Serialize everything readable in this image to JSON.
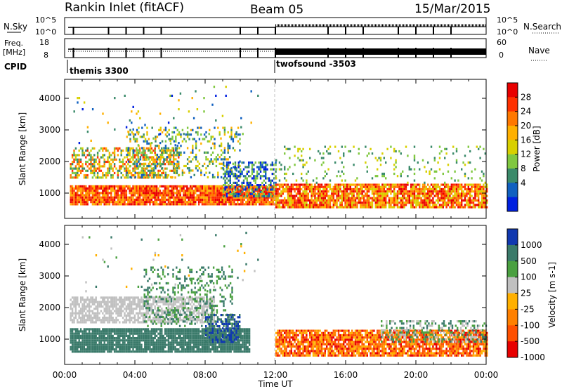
{
  "header": {
    "station": "Rankin Inlet (fitACF)",
    "beam": "Beam 05",
    "date": "15/Mar/2015"
  },
  "top_panels": {
    "nsky_label": "N.Sky",
    "nsky_ticks": [
      "10^5",
      "10^0"
    ],
    "nsearch_label": "N.Search",
    "nsearch_ticks": [
      "10^5",
      "10^0"
    ],
    "freq_label_1": "Freq.",
    "freq_label_2": "[MHz]",
    "freq_ticks": [
      "18",
      "8"
    ],
    "nave_label": "Nave",
    "nave_ticks": [
      "60",
      "0"
    ],
    "cpid_label": "CPID",
    "cpid_modes": [
      "themis 3300",
      "twofsound -3503"
    ]
  },
  "x_axis": {
    "title": "Time UT",
    "ticks": [
      "00:00",
      "04:00",
      "08:00",
      "12:00",
      "16:00",
      "20:00",
      "00:00"
    ]
  },
  "chart_data": [
    {
      "type": "heatmap",
      "ylabel": "Slant Range [km]",
      "yticks": [
        "4000",
        "3000",
        "2000",
        "1000"
      ],
      "ylim": [
        200,
        4600
      ],
      "xlim": [
        0,
        24
      ],
      "colorbar_label": "Power [dB]",
      "colorbar_ticks": [
        "28",
        "24",
        "20",
        "16",
        "12",
        "8",
        "4"
      ],
      "colors": [
        "#e80000",
        "#ff3000",
        "#ff7800",
        "#ffb000",
        "#d8d000",
        "#80c840",
        "#3a8a6a",
        "#1060c0",
        "#0020e0"
      ],
      "scatter_bands": [
        {
          "t0": 0.3,
          "t1": 12.0,
          "r0": 650,
          "r1": 1250,
          "dens": 0.92,
          "c": [
            0,
            3
          ]
        },
        {
          "t0": 0.3,
          "t1": 6.5,
          "r0": 1500,
          "r1": 2450,
          "dens": 0.55,
          "c": [
            1,
            6
          ]
        },
        {
          "t0": 3.5,
          "t1": 10.0,
          "r0": 1500,
          "r1": 3100,
          "dens": 0.25,
          "c": [
            3,
            7
          ]
        },
        {
          "t0": 9.0,
          "t1": 12.0,
          "r0": 900,
          "r1": 2000,
          "dens": 0.5,
          "c": [
            5,
            8
          ]
        },
        {
          "t0": 12.0,
          "t1": 24.0,
          "r0": 550,
          "r1": 1300,
          "dens": 0.85,
          "c": [
            0,
            4
          ]
        },
        {
          "t0": 12.0,
          "t1": 24.0,
          "r0": 1300,
          "r1": 2500,
          "dens": 0.1,
          "c": [
            4,
            6
          ]
        },
        {
          "t0": 0.5,
          "t1": 11.0,
          "r0": 2500,
          "r1": 4400,
          "dens": 0.02,
          "c": [
            3,
            8
          ]
        }
      ]
    },
    {
      "type": "heatmap",
      "ylabel": "Slant Range [km]",
      "yticks": [
        "4000",
        "3000",
        "2000",
        "1000"
      ],
      "ylim": [
        200,
        4600
      ],
      "xlim": [
        0,
        24
      ],
      "colorbar_label": "Velocity [m s-1]",
      "colorbar_ticks": [
        "1000",
        "500",
        "100",
        "25",
        "-25",
        "-100",
        "-500",
        "-1000"
      ],
      "colors": [
        "#1038b0",
        "#3a7a6a",
        "#4aa040",
        "#c0c0c0",
        "#ffb000",
        "#ff8000",
        "#ff5000",
        "#e80000"
      ],
      "scatter_bands": [
        {
          "t0": 0.3,
          "t1": 10.5,
          "r0": 600,
          "r1": 1350,
          "dens": 0.92,
          "c": [
            1,
            1
          ]
        },
        {
          "t0": 0.3,
          "t1": 8.5,
          "r0": 1550,
          "r1": 2350,
          "dens": 0.7,
          "c": [
            3,
            3
          ]
        },
        {
          "t0": 4.5,
          "t1": 9.5,
          "r0": 1400,
          "r1": 3300,
          "dens": 0.25,
          "c": [
            1,
            2
          ]
        },
        {
          "t0": 8.0,
          "t1": 10.0,
          "r0": 900,
          "r1": 1800,
          "dens": 0.6,
          "c": [
            0,
            1
          ]
        },
        {
          "t0": 12.0,
          "t1": 24.0,
          "r0": 500,
          "r1": 1300,
          "dens": 0.85,
          "c": [
            4,
            7
          ]
        },
        {
          "t0": 18.0,
          "t1": 24.0,
          "r0": 900,
          "r1": 1600,
          "dens": 0.4,
          "c": [
            1,
            3
          ]
        },
        {
          "t0": 0.5,
          "t1": 11.0,
          "r0": 2500,
          "r1": 4400,
          "dens": 0.02,
          "c": [
            1,
            4
          ]
        }
      ]
    }
  ],
  "markers": {
    "mode_change_time": 12.0,
    "scan_ticks_hours": [
      0.5,
      2.5,
      3.5,
      4.5,
      5.5,
      10.0,
      11.0,
      12.0,
      15.0,
      16.0,
      17.0,
      19.0,
      20.0,
      21.0,
      22.0
    ]
  }
}
